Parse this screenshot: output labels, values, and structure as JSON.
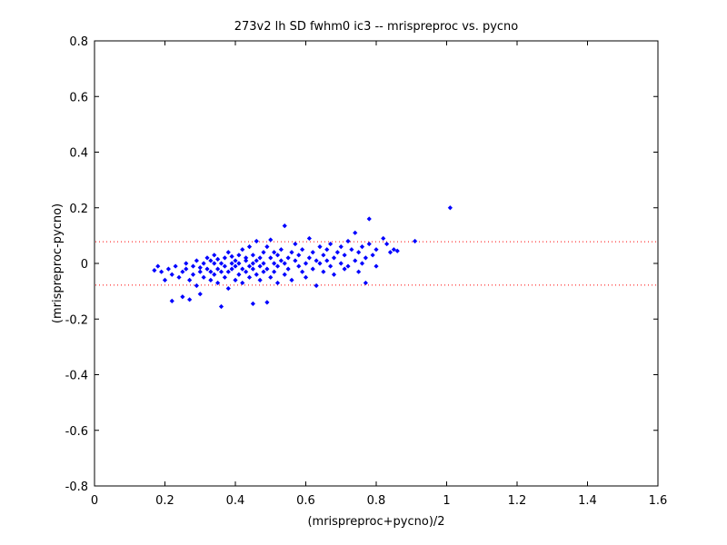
{
  "chart_data": {
    "type": "scatter",
    "title": "273v2 lh SD fwhm0 ic3 -- mrispreproc vs. pycno",
    "xlabel": "(mrispreproc+pycno)/2",
    "ylabel": "(mrispreproc-pycno)",
    "xlim": [
      0,
      1.6
    ],
    "ylim": [
      -0.8,
      0.8
    ],
    "xticks": [
      "0",
      "0.2",
      "0.4",
      "0.6",
      "0.8",
      "1",
      "1.2",
      "1.4",
      "1.6"
    ],
    "yticks": [
      "0.8",
      "0.6",
      "0.4",
      "0.2",
      "0",
      "-0.2",
      "-0.4",
      "-0.6",
      "-0.8"
    ],
    "xtick_values": [
      0,
      0.2,
      0.4,
      0.6,
      0.8,
      1.0,
      1.2,
      1.4,
      1.6
    ],
    "ytick_values": [
      0.8,
      0.6,
      0.4,
      0.2,
      0,
      -0.2,
      -0.4,
      -0.6,
      -0.8
    ],
    "grid": false,
    "colors": {
      "points": "#0000ff",
      "limits": "#ff0000",
      "axes": "#000000"
    },
    "reference_lines": [
      {
        "y": 0.078,
        "style": "dotted",
        "color": "#ff0000"
      },
      {
        "y": -0.078,
        "style": "dotted",
        "color": "#ff0000"
      }
    ],
    "series": [
      {
        "marker": "diamond",
        "color": "#0000ff",
        "points": [
          [
            0.17,
            -0.025
          ],
          [
            0.18,
            -0.01
          ],
          [
            0.19,
            -0.03
          ],
          [
            0.2,
            -0.06
          ],
          [
            0.21,
            -0.02
          ],
          [
            0.22,
            -0.135
          ],
          [
            0.22,
            -0.04
          ],
          [
            0.23,
            -0.01
          ],
          [
            0.24,
            -0.05
          ],
          [
            0.25,
            -0.12
          ],
          [
            0.25,
            -0.03
          ],
          [
            0.26,
            -0.02
          ],
          [
            0.26,
            0.0
          ],
          [
            0.27,
            -0.13
          ],
          [
            0.27,
            -0.06
          ],
          [
            0.28,
            -0.04
          ],
          [
            0.28,
            -0.01
          ],
          [
            0.29,
            -0.08
          ],
          [
            0.29,
            0.01
          ],
          [
            0.3,
            -0.11
          ],
          [
            0.3,
            -0.03
          ],
          [
            0.3,
            -0.015
          ],
          [
            0.31,
            -0.05
          ],
          [
            0.31,
            0.0
          ],
          [
            0.32,
            -0.02
          ],
          [
            0.32,
            0.02
          ],
          [
            0.33,
            -0.06
          ],
          [
            0.33,
            -0.03
          ],
          [
            0.33,
            0.01
          ],
          [
            0.34,
            -0.04
          ],
          [
            0.34,
            0.0
          ],
          [
            0.34,
            0.03
          ],
          [
            0.35,
            -0.02
          ],
          [
            0.35,
            -0.07
          ],
          [
            0.35,
            0.015
          ],
          [
            0.36,
            -0.03
          ],
          [
            0.36,
            0.0
          ],
          [
            0.36,
            -0.155
          ],
          [
            0.37,
            -0.05
          ],
          [
            0.37,
            0.02
          ],
          [
            0.37,
            -0.01
          ],
          [
            0.38,
            -0.03
          ],
          [
            0.38,
            0.04
          ],
          [
            0.38,
            -0.09
          ],
          [
            0.39,
            0.0
          ],
          [
            0.39,
            -0.02
          ],
          [
            0.39,
            0.025
          ],
          [
            0.4,
            -0.06
          ],
          [
            0.4,
            0.01
          ],
          [
            0.4,
            -0.01
          ],
          [
            0.41,
            -0.04
          ],
          [
            0.41,
            0.03
          ],
          [
            0.41,
            0.0
          ],
          [
            0.42,
            -0.02
          ],
          [
            0.42,
            0.05
          ],
          [
            0.42,
            -0.07
          ],
          [
            0.43,
            0.01
          ],
          [
            0.43,
            -0.03
          ],
          [
            0.43,
            0.02
          ],
          [
            0.44,
            -0.01
          ],
          [
            0.44,
            0.06
          ],
          [
            0.44,
            -0.05
          ],
          [
            0.45,
            0.0
          ],
          [
            0.45,
            -0.02
          ],
          [
            0.45,
            0.03
          ],
          [
            0.45,
            -0.145
          ],
          [
            0.46,
            -0.04
          ],
          [
            0.46,
            0.08
          ],
          [
            0.46,
            0.01
          ],
          [
            0.47,
            -0.06
          ],
          [
            0.47,
            0.02
          ],
          [
            0.47,
            -0.01
          ],
          [
            0.48,
            0.04
          ],
          [
            0.48,
            -0.03
          ],
          [
            0.48,
            0.0
          ],
          [
            0.49,
            -0.14
          ],
          [
            0.49,
            0.06
          ],
          [
            0.49,
            -0.02
          ],
          [
            0.5,
            0.02
          ],
          [
            0.5,
            -0.05
          ],
          [
            0.5,
            0.085
          ],
          [
            0.51,
            0.0
          ],
          [
            0.51,
            -0.03
          ],
          [
            0.51,
            0.04
          ],
          [
            0.52,
            -0.01
          ],
          [
            0.52,
            0.03
          ],
          [
            0.52,
            -0.07
          ],
          [
            0.53,
            0.01
          ],
          [
            0.53,
            0.05
          ],
          [
            0.54,
            -0.04
          ],
          [
            0.54,
            0.135
          ],
          [
            0.54,
            0.0
          ],
          [
            0.55,
            0.02
          ],
          [
            0.55,
            -0.02
          ],
          [
            0.56,
            0.04
          ],
          [
            0.56,
            -0.06
          ],
          [
            0.57,
            0.01
          ],
          [
            0.57,
            0.07
          ],
          [
            0.58,
            -0.01
          ],
          [
            0.58,
            0.03
          ],
          [
            0.59,
            -0.03
          ],
          [
            0.59,
            0.05
          ],
          [
            0.6,
            0.0
          ],
          [
            0.6,
            -0.05
          ],
          [
            0.61,
            0.02
          ],
          [
            0.61,
            0.09
          ],
          [
            0.62,
            -0.02
          ],
          [
            0.62,
            0.04
          ],
          [
            0.63,
            0.01
          ],
          [
            0.63,
            -0.08
          ],
          [
            0.64,
            0.06
          ],
          [
            0.64,
            0.0
          ],
          [
            0.65,
            0.03
          ],
          [
            0.65,
            -0.03
          ],
          [
            0.66,
            0.05
          ],
          [
            0.66,
            0.01
          ],
          [
            0.67,
            -0.01
          ],
          [
            0.67,
            0.07
          ],
          [
            0.68,
            0.02
          ],
          [
            0.68,
            -0.04
          ],
          [
            0.69,
            0.04
          ],
          [
            0.7,
            0.0
          ],
          [
            0.7,
            0.06
          ],
          [
            0.71,
            -0.02
          ],
          [
            0.71,
            0.03
          ],
          [
            0.72,
            0.08
          ],
          [
            0.72,
            -0.01
          ],
          [
            0.73,
            0.05
          ],
          [
            0.74,
            0.01
          ],
          [
            0.74,
            0.11
          ],
          [
            0.75,
            -0.03
          ],
          [
            0.75,
            0.04
          ],
          [
            0.76,
            0.06
          ],
          [
            0.76,
            0.0
          ],
          [
            0.77,
            0.02
          ],
          [
            0.77,
            -0.07
          ],
          [
            0.78,
            0.16
          ],
          [
            0.78,
            0.07
          ],
          [
            0.79,
            0.03
          ],
          [
            0.8,
            0.05
          ],
          [
            0.8,
            -0.01
          ],
          [
            0.82,
            0.09
          ],
          [
            0.83,
            0.07
          ],
          [
            0.84,
            0.04
          ],
          [
            0.85,
            0.05
          ],
          [
            0.86,
            0.045
          ],
          [
            0.91,
            0.08
          ],
          [
            1.01,
            0.2
          ]
        ]
      }
    ]
  }
}
